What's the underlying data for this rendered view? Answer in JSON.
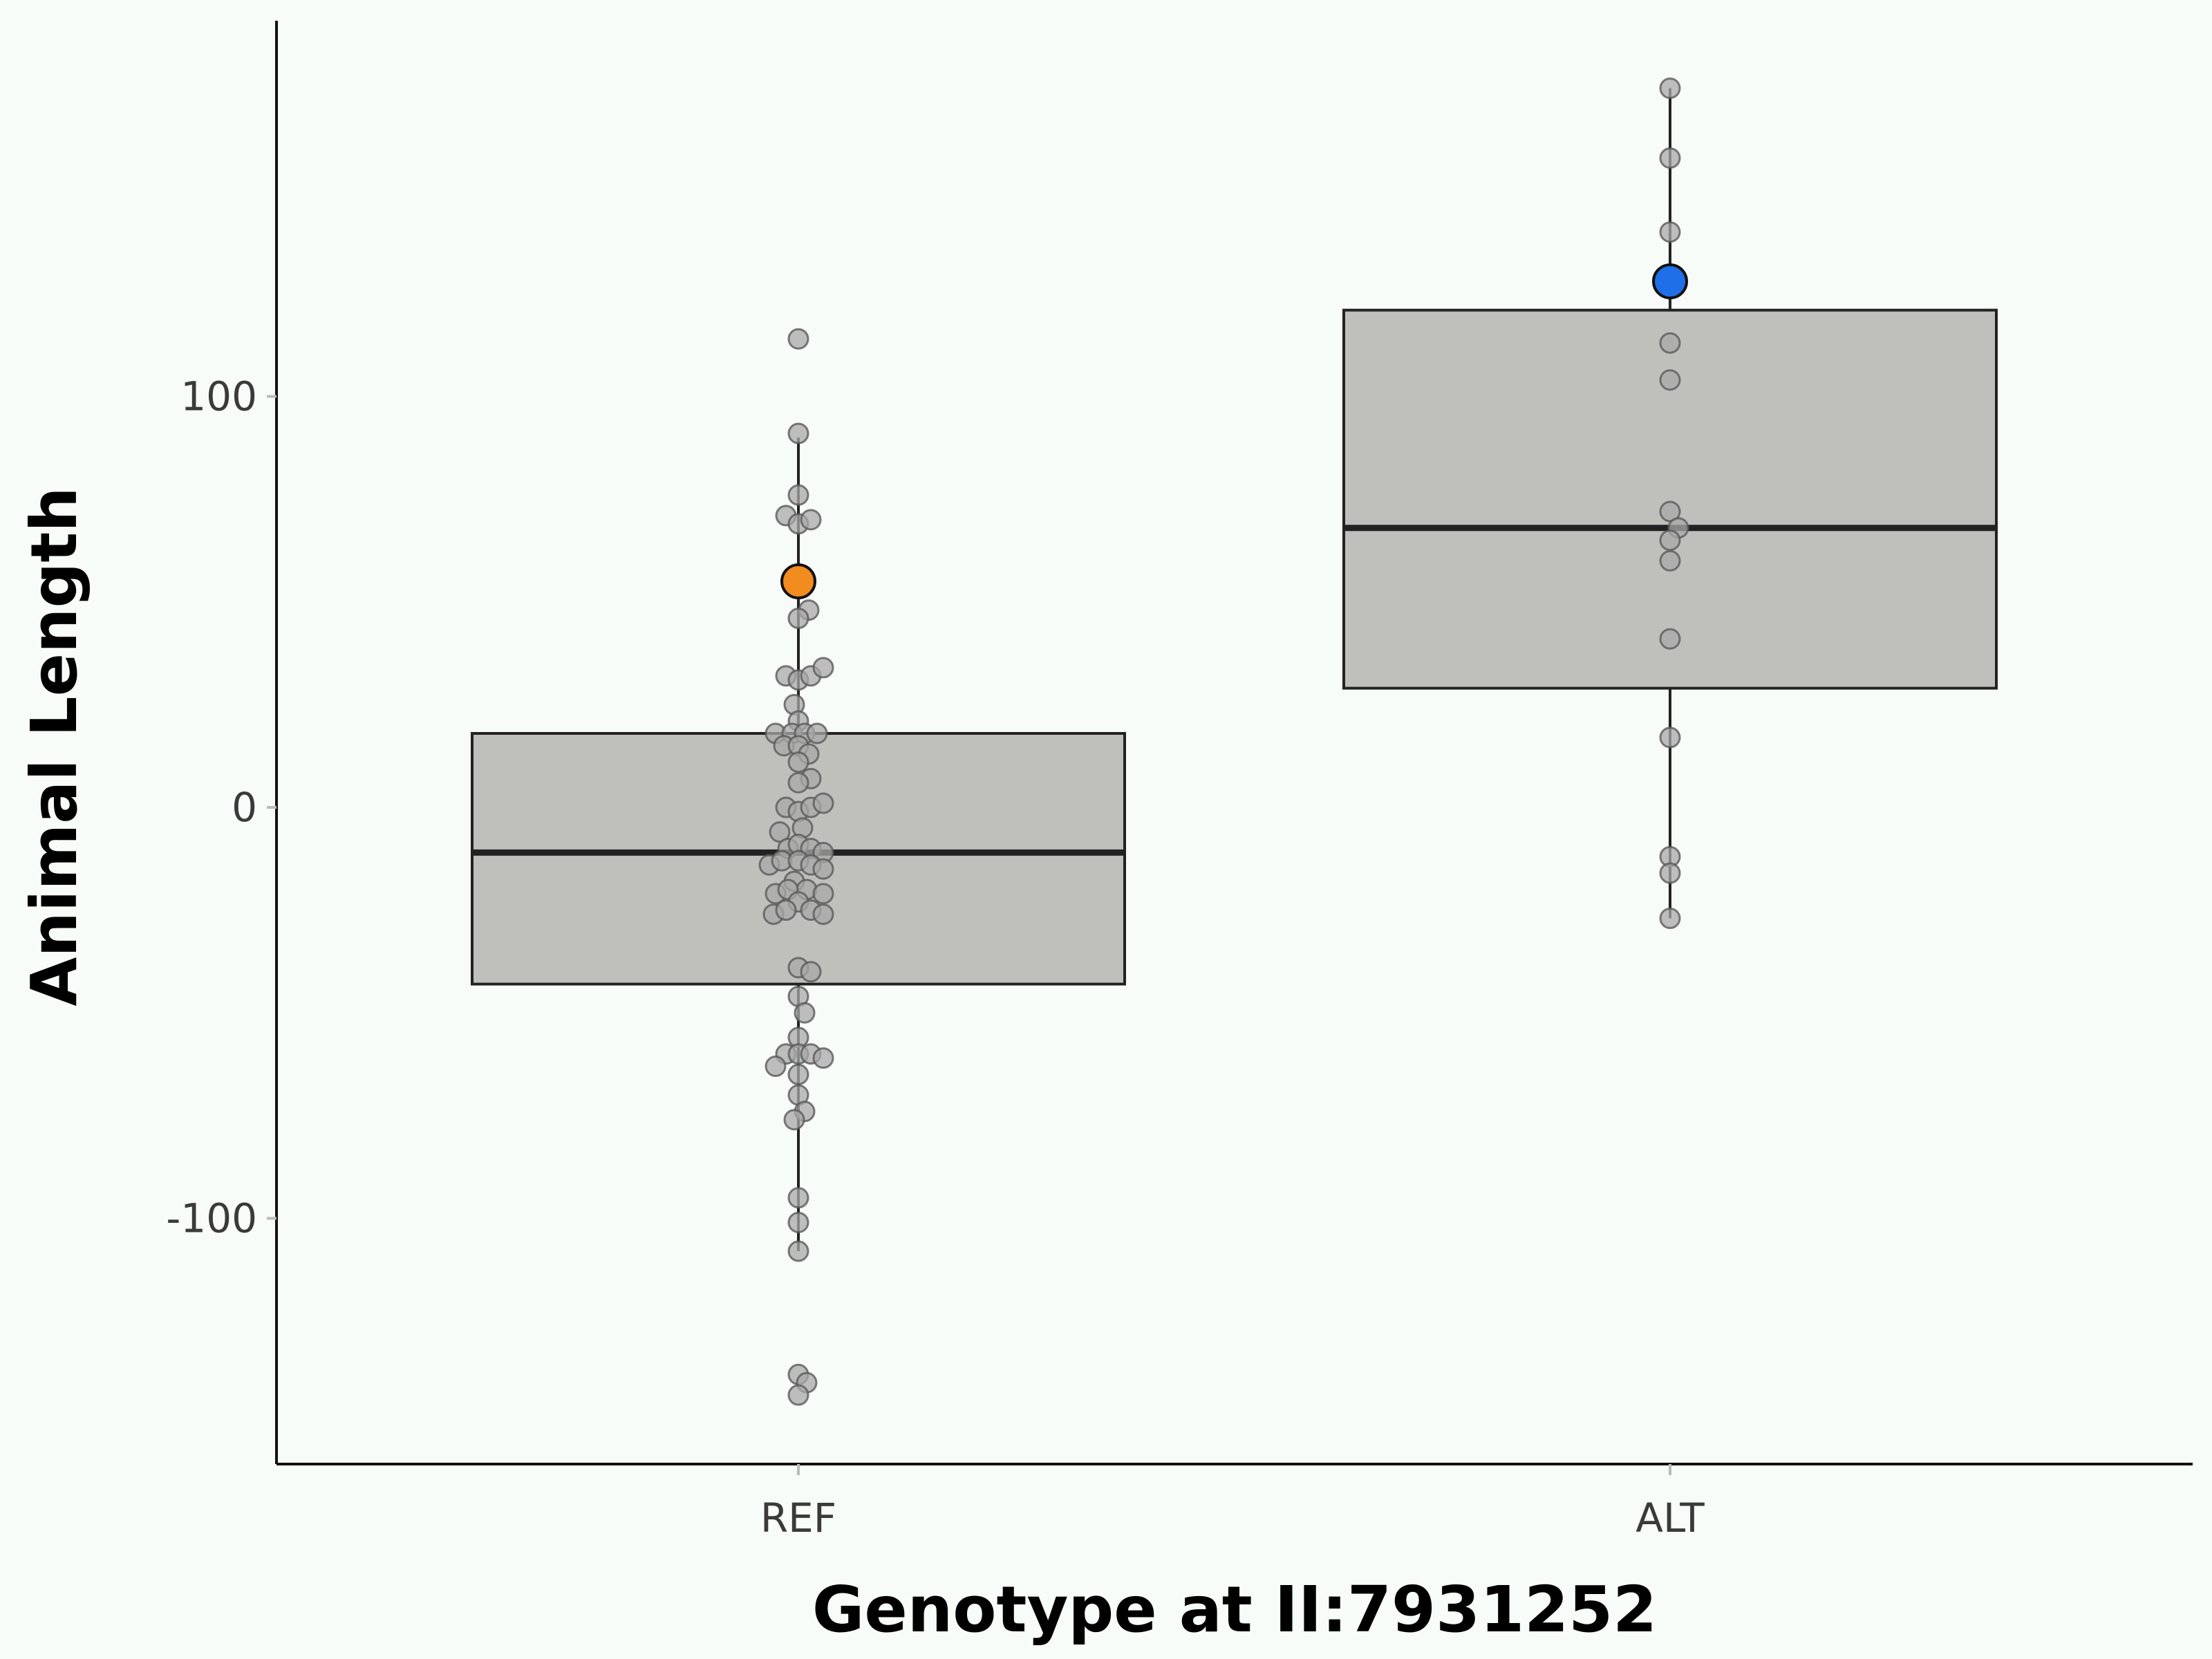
{
  "chart_data": {
    "type": "boxplot",
    "xlabel": "Genotype at II:7931252",
    "ylabel": "Animal Length",
    "categories": [
      "REF",
      "ALT"
    ],
    "yticks": [
      -100,
      0,
      100
    ],
    "ylim": [
      -160,
      190
    ],
    "grid": false,
    "colors": {
      "background": "#f7fcf8",
      "box_fill": "#bfbfbc",
      "box_stroke": "#222222",
      "point_fill": "#a8a8a8",
      "point_stroke": "#5a5a5a",
      "highlight_ref": "#f28c1e",
      "highlight_alt": "#1e6fe8"
    },
    "boxes": [
      {
        "category": "REF",
        "q1": -43,
        "median": -11,
        "q3": 18,
        "whisker_low": -108,
        "whisker_high": 90
      },
      {
        "category": "ALT",
        "q1": 29,
        "median": 68,
        "q3": 121,
        "whisker_low": -27,
        "whisker_high": 175
      }
    ],
    "points": {
      "REF": [
        [
          0,
          114
        ],
        [
          0,
          91
        ],
        [
          0,
          76
        ],
        [
          -0.03,
          71
        ],
        [
          0,
          69
        ],
        [
          0.03,
          70
        ],
        [
          0.025,
          48
        ],
        [
          0,
          46
        ],
        [
          -0.03,
          32
        ],
        [
          0,
          31
        ],
        [
          0.03,
          32
        ],
        [
          0.06,
          34
        ],
        [
          -0.01,
          25
        ],
        [
          0,
          21
        ],
        [
          -0.055,
          18
        ],
        [
          -0.015,
          18
        ],
        [
          0.015,
          18
        ],
        [
          0.045,
          18
        ],
        [
          -0.035,
          15
        ],
        [
          0,
          15
        ],
        [
          0.025,
          13
        ],
        [
          0,
          11
        ],
        [
          0.03,
          7
        ],
        [
          0,
          6
        ],
        [
          -0.03,
          0
        ],
        [
          0,
          -1
        ],
        [
          0.03,
          0
        ],
        [
          0.06,
          1
        ],
        [
          0.01,
          -5
        ],
        [
          -0.045,
          -6
        ],
        [
          -0.025,
          -10
        ],
        [
          0,
          -9
        ],
        [
          0.03,
          -10
        ],
        [
          0.06,
          -11
        ],
        [
          -0.07,
          -14
        ],
        [
          -0.04,
          -13
        ],
        [
          0,
          -13
        ],
        [
          0.03,
          -14
        ],
        [
          0.06,
          -15
        ],
        [
          -0.01,
          -18
        ],
        [
          0.02,
          -20
        ],
        [
          -0.055,
          -21
        ],
        [
          -0.025,
          -20
        ],
        [
          0,
          -23
        ],
        [
          0.06,
          -21
        ],
        [
          -0.06,
          -26
        ],
        [
          -0.03,
          -25
        ],
        [
          0.03,
          -25
        ],
        [
          0.06,
          -26
        ],
        [
          0,
          -39
        ],
        [
          0.03,
          -40
        ],
        [
          0,
          -46
        ],
        [
          0.015,
          -50
        ],
        [
          0,
          -56
        ],
        [
          -0.03,
          -60
        ],
        [
          0,
          -60
        ],
        [
          0.03,
          -60
        ],
        [
          0.06,
          -61
        ],
        [
          -0.055,
          -63
        ],
        [
          0,
          -65
        ],
        [
          0,
          -70
        ],
        [
          0.015,
          -74
        ],
        [
          -0.01,
          -76
        ],
        [
          0,
          -95
        ],
        [
          0,
          -101
        ],
        [
          0,
          -108
        ],
        [
          0,
          -138
        ],
        [
          0.02,
          -140
        ],
        [
          0,
          -143
        ]
      ],
      "ALT": [
        [
          0,
          175
        ],
        [
          0,
          158
        ],
        [
          0,
          140
        ],
        [
          0,
          113
        ],
        [
          0,
          104
        ],
        [
          0,
          72
        ],
        [
          0.02,
          68
        ],
        [
          0,
          65
        ],
        [
          0,
          60
        ],
        [
          0,
          41
        ],
        [
          0,
          17
        ],
        [
          0,
          -12
        ],
        [
          0,
          -16
        ],
        [
          0,
          -27
        ]
      ]
    },
    "highlights": [
      {
        "category": "REF",
        "offset": 0,
        "value": 55,
        "color": "#f28c1e"
      },
      {
        "category": "ALT",
        "offset": 0,
        "value": 128,
        "color": "#1e6fe8"
      }
    ]
  }
}
